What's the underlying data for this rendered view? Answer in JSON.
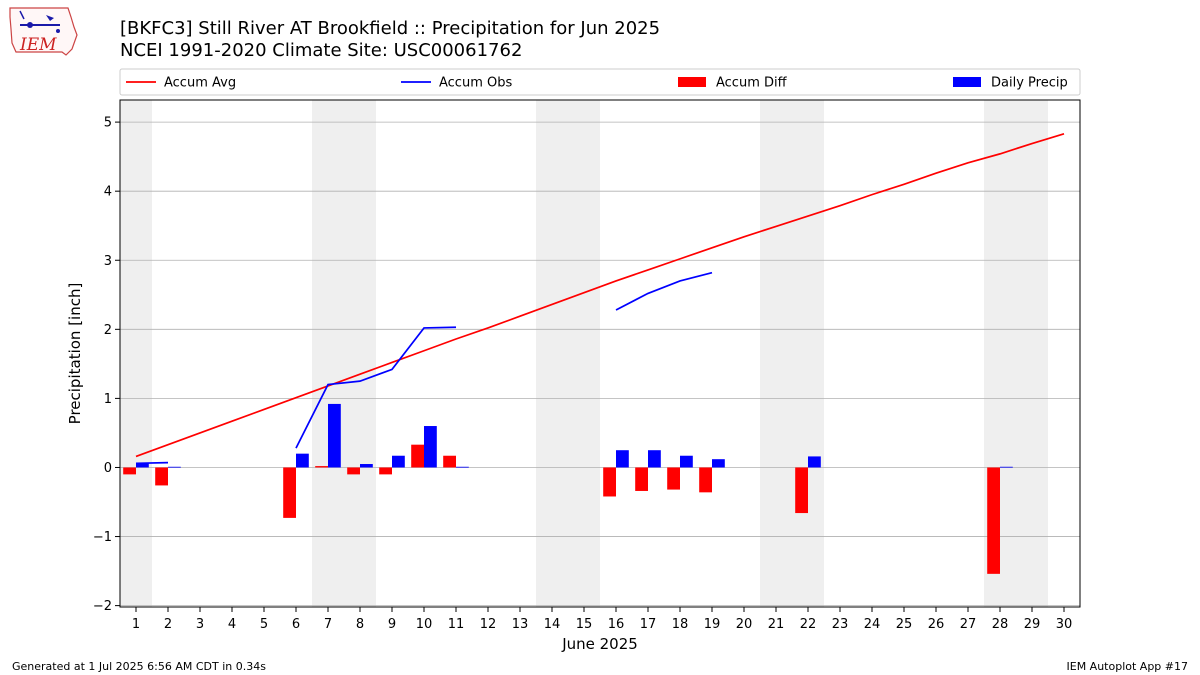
{
  "header": {
    "title_line1": "[BKFC3] Still River  AT Brookfield :: Precipitation for Jun 2025",
    "title_line2": "NCEI 1991-2020 Climate Site: USC00061762",
    "logo_text": "IEM"
  },
  "footer": {
    "left": "Generated at 1 Jul 2025 6:56 AM CDT in 0.34s",
    "right": "IEM Autoplot App #17"
  },
  "chart_data": {
    "type": "bar",
    "xlabel": "June 2025",
    "ylabel": "Precipitation [inch]",
    "xlim": [
      0.5,
      30.5
    ],
    "ylim": [
      -2.02,
      5.32
    ],
    "yticks": [
      -2,
      -1,
      0,
      1,
      2,
      3,
      4,
      5
    ],
    "ytick_labels": [
      "−2",
      "−1",
      "0",
      "1",
      "2",
      "3",
      "4",
      "5"
    ],
    "days": [
      1,
      2,
      3,
      4,
      5,
      6,
      7,
      8,
      9,
      10,
      11,
      12,
      13,
      14,
      15,
      16,
      17,
      18,
      19,
      20,
      21,
      22,
      23,
      24,
      25,
      26,
      27,
      28,
      29,
      30
    ],
    "weekend_shading": [
      [
        0.5,
        1.5
      ],
      [
        6.5,
        8.5
      ],
      [
        13.5,
        15.5
      ],
      [
        20.5,
        22.5
      ],
      [
        27.5,
        29.5
      ]
    ],
    "grid": "horizontal",
    "legend_position": "top",
    "colors": {
      "accum_avg": "#ff0000",
      "accum_obs": "#0000ff",
      "accum_diff": "#ff0000",
      "daily_precip": "#0000ff",
      "shade": "#efefef",
      "grid": "#b0b0b0"
    },
    "series": [
      {
        "name": "Accum Avg",
        "kind": "line",
        "values": [
          0.16,
          0.33,
          0.5,
          0.67,
          0.84,
          1.01,
          1.18,
          1.35,
          1.52,
          1.69,
          1.86,
          2.02,
          2.19,
          2.36,
          2.53,
          2.7,
          2.86,
          3.02,
          3.18,
          3.34,
          3.49,
          3.64,
          3.79,
          3.95,
          4.1,
          4.26,
          4.41,
          4.54,
          4.69,
          4.83
        ]
      },
      {
        "name": "Accum Obs",
        "kind": "line",
        "segments": [
          {
            "x": [
              1,
              2
            ],
            "y": [
              0.06,
              0.07
            ]
          },
          {
            "x": [
              6,
              7,
              8,
              9,
              10,
              11
            ],
            "y": [
              0.28,
              1.2,
              1.25,
              1.42,
              2.02,
              2.03
            ]
          },
          {
            "x": [
              16,
              17,
              18,
              19
            ],
            "y": [
              2.28,
              2.52,
              2.7,
              2.82
            ]
          }
        ]
      },
      {
        "name": "Accum Diff",
        "kind": "bar",
        "x": [
          1,
          2,
          6,
          7,
          8,
          9,
          10,
          11,
          16,
          17,
          18,
          19,
          22,
          28
        ],
        "values": [
          -0.1,
          -0.26,
          -0.73,
          0.02,
          -0.1,
          -0.1,
          0.33,
          0.17,
          -0.42,
          -0.34,
          -0.32,
          -0.36,
          -0.66,
          -1.54
        ]
      },
      {
        "name": "Daily Precip",
        "kind": "bar",
        "x": [
          1,
          2,
          6,
          7,
          8,
          9,
          10,
          11,
          16,
          17,
          18,
          19,
          22,
          28
        ],
        "values": [
          0.06,
          0.01,
          0.2,
          0.92,
          0.05,
          0.17,
          0.6,
          0.01,
          0.25,
          0.25,
          0.17,
          0.12,
          0.16,
          0.01
        ]
      }
    ]
  }
}
